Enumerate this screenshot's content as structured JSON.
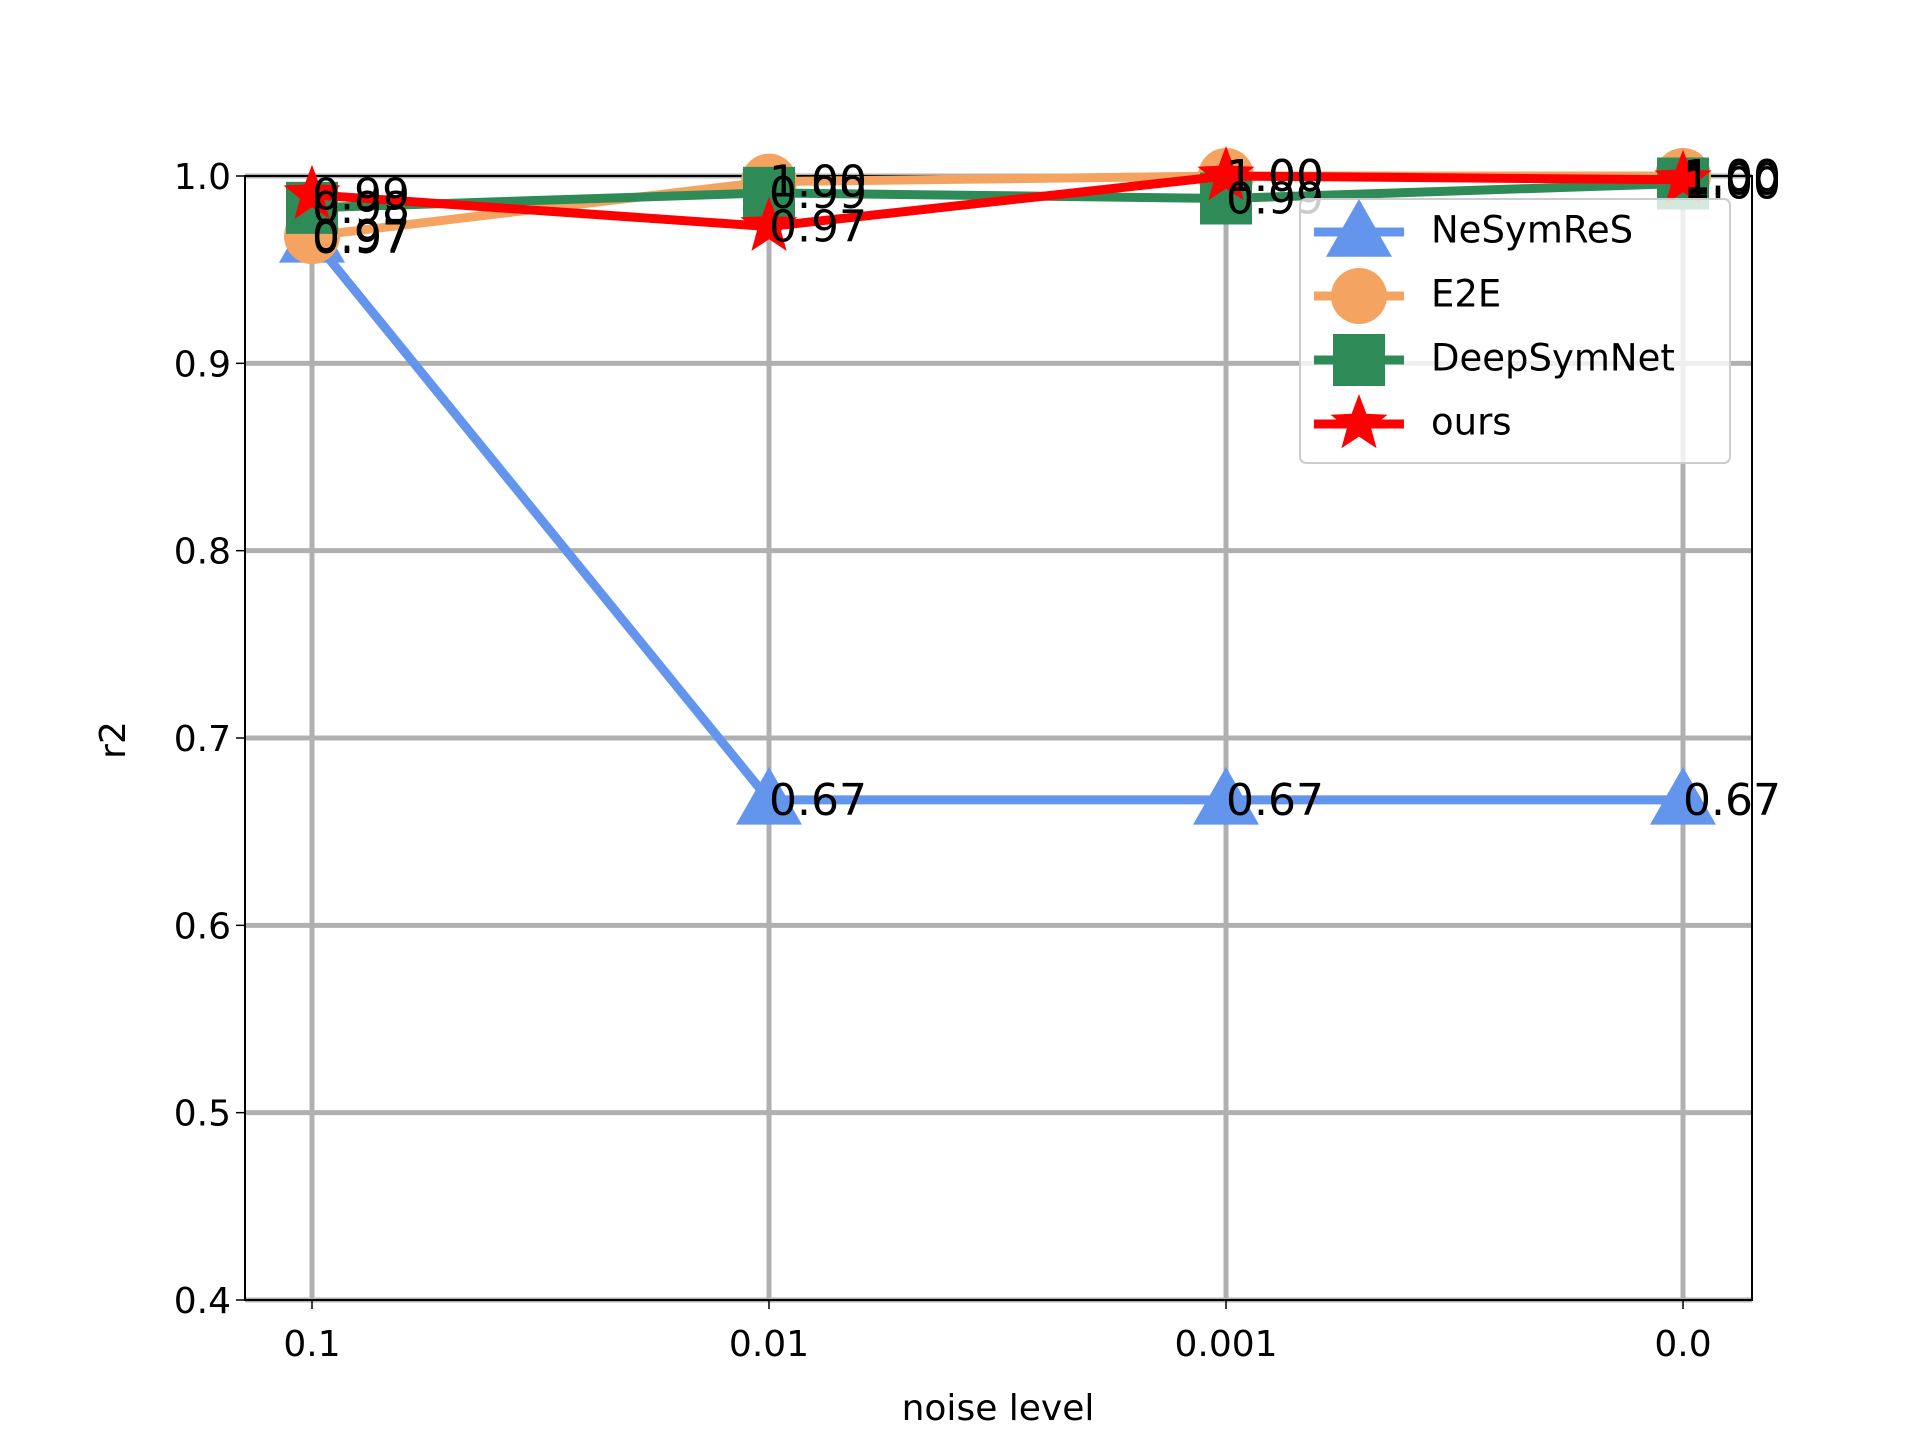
{
  "chart_data": {
    "type": "line",
    "xlabel": "noise level",
    "ylabel": "r2",
    "categories": [
      "0.1",
      "0.01",
      "0.001",
      "0.0"
    ],
    "ylim": [
      0.4,
      1.0
    ],
    "yticks": [
      0.4,
      0.5,
      0.6,
      0.7,
      0.8,
      0.9,
      {
        "value": 1.0,
        "label": "1.0"
      }
    ],
    "grid": true,
    "legend": "upper right",
    "series": [
      {
        "name": "NeSymReS",
        "color": "#6495ed",
        "marker": "triangle",
        "values": [
          0.967,
          0.667,
          0.667,
          0.667
        ],
        "value_labels": [
          "0.97",
          "0.67",
          "0.67",
          "0.67"
        ]
      },
      {
        "name": "E2E",
        "color": "#f4a460",
        "marker": "circle",
        "values": [
          0.968,
          0.997,
          1.0,
          1.0
        ],
        "value_labels": [
          "0.97",
          "1.00",
          "1.00",
          "1.00"
        ]
      },
      {
        "name": "DeepSymNet",
        "color": "#2e8b57",
        "marker": "square",
        "values": [
          0.983,
          0.991,
          0.988,
          0.996
        ],
        "value_labels": [
          "0.98",
          "0.99",
          "0.99",
          "1.00"
        ]
      },
      {
        "name": "ours",
        "color": "#ff0000",
        "marker": "star",
        "values": [
          0.99,
          0.973,
          1.0,
          0.998
        ],
        "value_labels": [
          "0.99",
          "0.97",
          "1.00",
          "1.00"
        ]
      }
    ]
  }
}
